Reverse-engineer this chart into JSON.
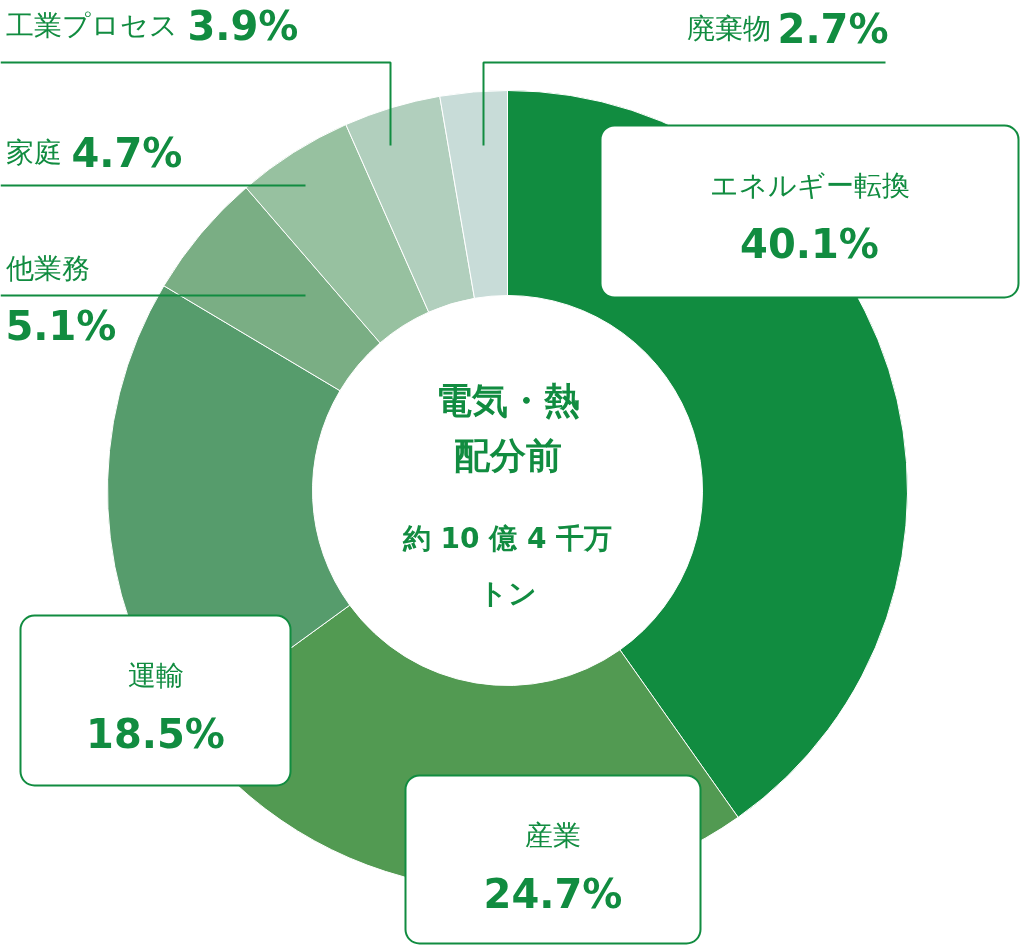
{
  "chart_data": {
    "type": "donut",
    "title": "電気・熱",
    "subtitle": "配分前",
    "annotations": [
      "約 10 億 4 千万",
      "トン"
    ],
    "categories": [
      "エネルギー転換",
      "産業",
      "運輸",
      "他業務",
      "家庭",
      "工業プロセス",
      "廃棄物"
    ],
    "values": [
      40.1,
      24.7,
      18.5,
      5.1,
      4.7,
      3.9,
      2.7
    ],
    "value_labels": [
      "40.1%",
      "24.7%",
      "18.5%",
      "5.1%",
      "4.7%",
      "3.9%",
      "2.7%"
    ],
    "colors": [
      "#118c40",
      "#529a52",
      "#569c6c",
      "#7aae84",
      "#97c1a0",
      "#b1cfbd",
      "#c8dcd8"
    ]
  }
}
